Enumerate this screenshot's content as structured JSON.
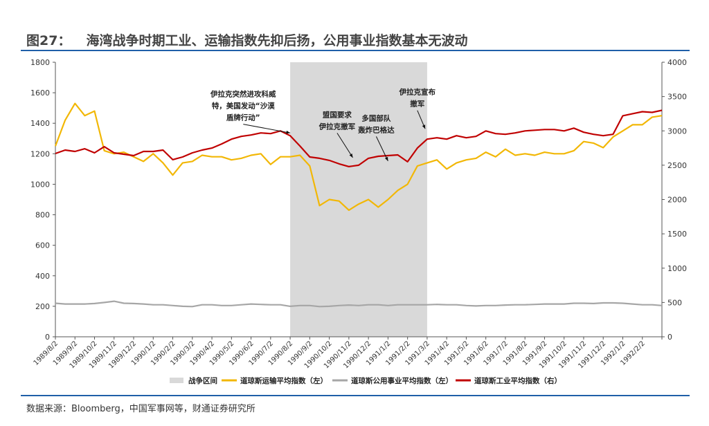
{
  "page": {
    "title_num": "图27：",
    "title_text": "海湾战争时期工业、运输指数先抑后扬，公用事业指数基本无波动",
    "source": "数据来源：Bloomberg，中国军事网等，财通证券研究所"
  },
  "colors": {
    "transport": "#f2b705",
    "utility": "#a6a6a6",
    "industrial": "#c00000",
    "war_band": "#d9d9d9",
    "rule": "#1f5fa8"
  },
  "chart_data": {
    "type": "line",
    "x_tick_labels": [
      "1989/8/2",
      "1989/9/2",
      "1989/10/2",
      "1989/11/2",
      "1989/12/2",
      "1990/1/2",
      "1990/2/2",
      "1990/3/2",
      "1990/4/2",
      "1990/5/2",
      "1990/6/2",
      "1990/7/2",
      "1990/8/2",
      "1990/9/2",
      "1990/10/2",
      "1990/11/2",
      "1990/12/2",
      "1991/1/2",
      "1991/2/2",
      "1991/3/2",
      "1991/4/2",
      "1991/5/2",
      "1991/6/2",
      "1991/7/2",
      "1991/8/2",
      "1991/9/2",
      "1991/10/2",
      "1991/11/2",
      "1991/12/2",
      "1992/1/2",
      "1992/2/2"
    ],
    "y_left": {
      "min": 0,
      "max": 1800,
      "ticks": [
        0,
        200,
        400,
        600,
        800,
        1000,
        1200,
        1400,
        1600,
        1800
      ]
    },
    "y_right": {
      "min": 0,
      "max": 4000,
      "ticks": [
        0,
        500,
        1000,
        1500,
        2000,
        2500,
        3000,
        3500,
        4000
      ]
    },
    "war_period": {
      "start": "1990/8/2",
      "end": "1991/2/28",
      "label": "战争区间"
    },
    "x_months": [
      0,
      0.5,
      1,
      1.5,
      2,
      2.5,
      3,
      3.5,
      4,
      4.5,
      5,
      5.5,
      6,
      6.5,
      7,
      7.5,
      8,
      8.5,
      9,
      9.5,
      10,
      10.5,
      11,
      11.5,
      12,
      12.5,
      13,
      13.5,
      14,
      14.5,
      15,
      15.5,
      16,
      16.5,
      17,
      17.5,
      18,
      18.5,
      19,
      19.5,
      20,
      20.5,
      21,
      21.5,
      22,
      22.5,
      23,
      23.5,
      24,
      24.5,
      25,
      25.5,
      26,
      26.5,
      27,
      27.5,
      28,
      28.5,
      29,
      29.5,
      30,
      30.5,
      31
    ],
    "series": [
      {
        "name": "道琼斯运输平均指数（左）",
        "axis": "left",
        "key": "transport",
        "values": [
          1250,
          1420,
          1530,
          1450,
          1480,
          1220,
          1200,
          1210,
          1180,
          1150,
          1200,
          1140,
          1060,
          1140,
          1150,
          1190,
          1180,
          1180,
          1160,
          1170,
          1190,
          1200,
          1130,
          1180,
          1180,
          1190,
          1120,
          860,
          900,
          890,
          830,
          870,
          900,
          850,
          900,
          960,
          1000,
          1120,
          1140,
          1160,
          1100,
          1140,
          1160,
          1170,
          1210,
          1180,
          1230,
          1190,
          1200,
          1190,
          1210,
          1200,
          1200,
          1220,
          1280,
          1270,
          1240,
          1310,
          1350,
          1390,
          1390,
          1440,
          1450
        ]
      },
      {
        "name": "道琼斯公用事业平均指数（左）",
        "axis": "left",
        "key": "utility",
        "values": [
          220,
          215,
          215,
          215,
          218,
          225,
          233,
          220,
          218,
          215,
          210,
          210,
          205,
          200,
          198,
          210,
          210,
          205,
          205,
          210,
          215,
          212,
          210,
          210,
          200,
          205,
          205,
          198,
          200,
          205,
          208,
          205,
          210,
          210,
          205,
          210,
          210,
          210,
          210,
          212,
          210,
          210,
          205,
          202,
          205,
          205,
          208,
          210,
          210,
          212,
          215,
          215,
          215,
          220,
          220,
          218,
          222,
          222,
          220,
          215,
          210,
          210,
          205
        ]
      },
      {
        "name": "道琼斯工业平均指数（右）",
        "axis": "right",
        "key": "industrial",
        "values": [
          2670,
          2720,
          2700,
          2740,
          2680,
          2770,
          2680,
          2660,
          2640,
          2700,
          2700,
          2720,
          2580,
          2620,
          2680,
          2720,
          2750,
          2810,
          2880,
          2920,
          2940,
          2970,
          2960,
          3000,
          2930,
          2780,
          2620,
          2600,
          2570,
          2520,
          2480,
          2500,
          2600,
          2630,
          2640,
          2650,
          2550,
          2750,
          2880,
          2900,
          2880,
          2930,
          2900,
          2920,
          3000,
          2960,
          2950,
          2970,
          3000,
          3010,
          3020,
          3020,
          3000,
          3040,
          2980,
          2950,
          2930,
          2950,
          3220,
          3250,
          3280,
          3270,
          3300
        ]
      }
    ],
    "annotations": [
      {
        "lines": [
          "伊拉克突然进攻科威",
          "特，美国发动“沙漠",
          "盾牌行动”"
        ],
        "target_month": 12.0,
        "target_value": 2930,
        "axis": "right",
        "text_x_month": 9.6,
        "text_value": 3500
      },
      {
        "lines": [
          "盟国要求",
          "伊拉克撤军"
        ],
        "target_month": 15.2,
        "target_value": 2570,
        "axis": "right",
        "text_x_month": 14.4,
        "text_value": 3200
      },
      {
        "lines": [
          "多国部队",
          "轰炸巴格达"
        ],
        "target_month": 17.0,
        "target_value": 2520,
        "axis": "right",
        "text_x_month": 16.4,
        "text_value": 3150
      },
      {
        "lines": [
          "伊拉克宣布",
          "撤军"
        ],
        "target_month": 18.9,
        "target_value": 2990,
        "axis": "right",
        "text_x_month": 18.5,
        "text_value": 3530
      }
    ],
    "legend": [
      {
        "label": "战争区间",
        "key": "war_band",
        "kind": "box"
      },
      {
        "label": "道琼斯运输平均指数（左）",
        "key": "transport",
        "kind": "line"
      },
      {
        "label": "道琼斯公用事业平均指数（左）",
        "key": "utility",
        "kind": "line"
      },
      {
        "label": "道琼斯工业平均指数（右）",
        "key": "industrial",
        "kind": "line"
      }
    ],
    "legend_position": "bottom",
    "grid": false
  }
}
